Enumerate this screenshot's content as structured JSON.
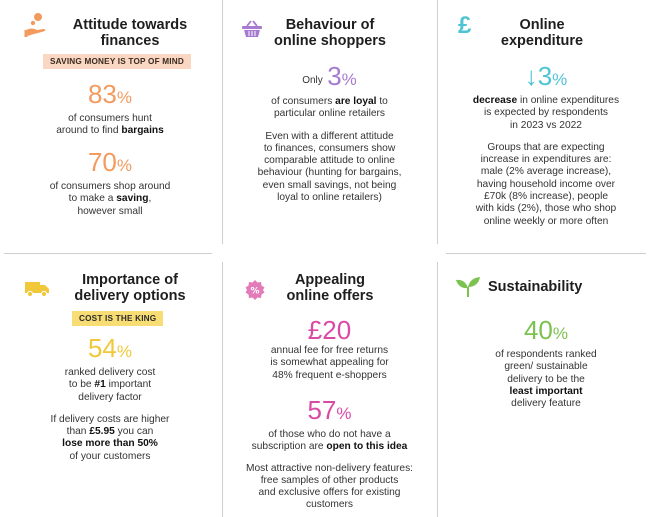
{
  "colors": {
    "orange": "#f39a5e",
    "purple": "#a57ad0",
    "teal": "#4ec3d3",
    "yellow": "#f0c83a",
    "pink": "#d94aa6",
    "green": "#7cc24f",
    "badge_peach": "#f9d7c2",
    "badge_yellow": "#f7dd73"
  },
  "finances": {
    "icon": "hand-coin-icon",
    "title_line1": "Attitude towards",
    "title_line2": "finances",
    "badge": "SAVING MONEY IS TOP OF MIND",
    "stat1_value": "83",
    "stat1_unit": "%",
    "stat1_text1": "of consumers hunt",
    "stat1_text2": "around to find",
    "stat1_bold": "bargains",
    "stat2_value": "70",
    "stat2_unit": "%",
    "stat2_text1": "of consumers shop around",
    "stat2_text2": "to make a",
    "stat2_bold": "saving",
    "stat2_text2_end": ",",
    "stat2_text3": "however small"
  },
  "behaviour": {
    "icon": "basket-icon",
    "title_line1": "Behaviour of",
    "title_line2": "online shoppers",
    "prefix": "Only",
    "stat_value": "3",
    "stat_unit": "%",
    "text1_pre": "of consumers",
    "text1_bold": "are loyal",
    "text1_post": "to",
    "text2": "particular online retailers",
    "para": [
      "Even with a different attitude",
      "to finances, consumers show",
      "comparable attitude to online",
      "behaviour (hunting for bargains,",
      "even small savings, not being",
      "loyal to online retailers)"
    ]
  },
  "expenditure": {
    "icon": "pound-sign-icon",
    "title_line1": "Online",
    "title_line2": "expenditure",
    "arrow": "↓",
    "stat_value": "3",
    "stat_unit": "%",
    "text1_bold": "decrease",
    "text1_post": "in online expenditures",
    "text2": "is expected by respondents",
    "text3": "in 2023 vs 2022",
    "para": [
      "Groups that are expecting",
      "increase in expenditures are:",
      "male (2% average increase),",
      "having household income over",
      "£70k (8% increase), people",
      "with kids (2%), those who shop",
      "online weekly or more often"
    ]
  },
  "delivery": {
    "icon": "delivery-truck-icon",
    "title_line1": "Importance of",
    "title_line2": "delivery options",
    "badge": "COST IS THE KING",
    "stat_value": "54",
    "stat_unit": "%",
    "text1": "ranked delivery cost",
    "text2_pre": "to be",
    "text2_bold": "#1",
    "text2_post": "important",
    "text3": "delivery factor",
    "para1": "If delivery costs are higher",
    "para2_pre": "than",
    "para2_bold": "£5.95",
    "para2_post": "you can",
    "para3_bold": "lose more than 50%",
    "para4": "of your customers"
  },
  "offers": {
    "icon": "discount-badge-icon",
    "title_line1": "Appealing",
    "title_line2": "online offers",
    "stat1_value": "£20",
    "stat1_text1": "annual fee for free returns",
    "stat1_text2": "is somewhat appealing for",
    "stat1_text3": "48% frequent e-shoppers",
    "stat2_value": "57",
    "stat2_unit": "%",
    "stat2_text1": "of those who do not have a",
    "stat2_text2_pre": "subscription are",
    "stat2_text2_bold": "open to this idea",
    "para": [
      "Most attractive non-delivery features:",
      "free samples of other products",
      "and exclusive offers for existing",
      "customers"
    ]
  },
  "sustainability": {
    "icon": "leaf-sprout-icon",
    "title": "Sustainability",
    "stat_value": "40",
    "stat_unit": "%",
    "text1": "of respondents ranked",
    "text2": "green/ sustainable",
    "text3": "delivery to be the",
    "text4_bold": "least important",
    "text5": "delivery feature"
  }
}
